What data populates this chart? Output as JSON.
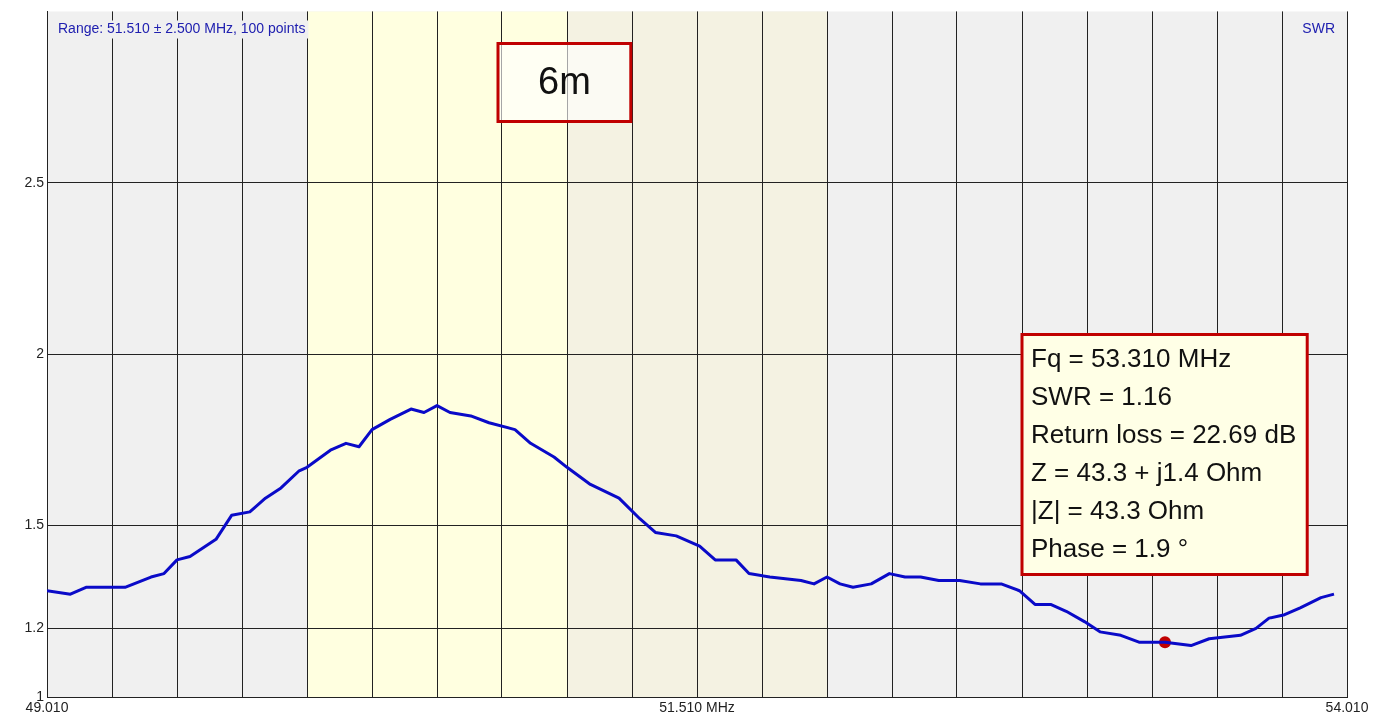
{
  "chart_data": {
    "type": "line",
    "annotations": [
      "Range: 51.510 ± 2.500 MHz, 100 points",
      "SWR",
      "6m",
      "Fq = 53.310 MHz\nSWR = 1.16\nReturn loss = 22.69 dB\nZ = 43.3 + j1.4 Ohm\n|Z| = 43.3 Ohm\nPhase = 1.9 °"
    ],
    "series": [
      {
        "color": "#0a0ac8",
        "x": [
          49.01,
          49.1,
          49.16,
          49.26,
          49.31,
          49.41,
          49.46,
          49.51,
          49.56,
          49.66,
          49.72,
          49.79,
          49.85,
          49.91,
          49.98,
          50.01,
          50.1,
          50.16,
          50.21,
          50.26,
          50.33,
          50.41,
          50.46,
          50.51,
          50.56,
          50.64,
          50.71,
          50.81,
          50.87,
          50.96,
          51.01,
          51.1,
          51.21,
          51.29,
          51.35,
          51.43,
          51.52,
          51.58,
          51.66,
          51.71,
          51.79,
          51.91,
          51.96,
          52.01,
          52.06,
          52.11,
          52.18,
          52.25,
          52.31,
          52.37,
          52.44,
          52.52,
          52.6,
          52.68,
          52.75,
          52.81,
          52.87,
          52.93,
          53.0,
          53.06,
          53.14,
          53.21,
          53.25,
          53.31,
          53.41,
          53.48,
          53.6,
          53.66,
          53.71,
          53.77,
          53.83,
          53.91,
          53.96
        ],
        "values": [
          1.31,
          1.3,
          1.32,
          1.32,
          1.32,
          1.35,
          1.36,
          1.4,
          1.41,
          1.46,
          1.53,
          1.54,
          1.58,
          1.61,
          1.66,
          1.67,
          1.72,
          1.74,
          1.73,
          1.78,
          1.81,
          1.84,
          1.83,
          1.85,
          1.83,
          1.82,
          1.8,
          1.78,
          1.74,
          1.7,
          1.67,
          1.62,
          1.58,
          1.52,
          1.48,
          1.47,
          1.44,
          1.4,
          1.4,
          1.36,
          1.35,
          1.34,
          1.33,
          1.35,
          1.33,
          1.32,
          1.33,
          1.36,
          1.35,
          1.35,
          1.34,
          1.34,
          1.33,
          1.33,
          1.31,
          1.27,
          1.27,
          1.25,
          1.22,
          1.19,
          1.18,
          1.16,
          1.16,
          1.16,
          1.15,
          1.17,
          1.18,
          1.2,
          1.23,
          1.24,
          1.26,
          1.29,
          1.3
        ]
      },
      {
        "type": "scatter",
        "color": "#c00000",
        "x": [
          53.31
        ],
        "values": [
          1.16
        ]
      }
    ],
    "xlim": [
      49.01,
      54.01
    ],
    "xticks": [
      {
        "value": 49.01,
        "label": "49.010"
      },
      {
        "value": 49.26,
        "label": null
      },
      {
        "value": 49.51,
        "label": null
      },
      {
        "value": 49.76,
        "label": null
      },
      {
        "value": 50.01,
        "label": null
      },
      {
        "value": 50.26,
        "label": null
      },
      {
        "value": 50.51,
        "label": null
      },
      {
        "value": 50.76,
        "label": null
      },
      {
        "value": 51.01,
        "label": null
      },
      {
        "value": 51.26,
        "label": null
      },
      {
        "value": 51.51,
        "label": "51.510 MHz"
      },
      {
        "value": 51.76,
        "label": null
      },
      {
        "value": 52.01,
        "label": null
      },
      {
        "value": 52.26,
        "label": null
      },
      {
        "value": 52.51,
        "label": null
      },
      {
        "value": 52.76,
        "label": null
      },
      {
        "value": 53.01,
        "label": null
      },
      {
        "value": 53.26,
        "label": null
      },
      {
        "value": 53.51,
        "label": null
      },
      {
        "value": 53.76,
        "label": null
      },
      {
        "value": 54.01,
        "label": "54.010"
      }
    ],
    "ylim": [
      1,
      3
    ],
    "yticks": [
      1,
      1.2,
      1.5,
      2,
      2.5
    ],
    "bands": [
      {
        "axis": "x",
        "from": 50.01,
        "to": 51.01,
        "color": "#ffffe0"
      },
      {
        "axis": "x",
        "from": 51.01,
        "to": 52.01,
        "color": "#f4f2e2"
      }
    ],
    "grid": true,
    "legend": false,
    "line_style": "solid"
  }
}
